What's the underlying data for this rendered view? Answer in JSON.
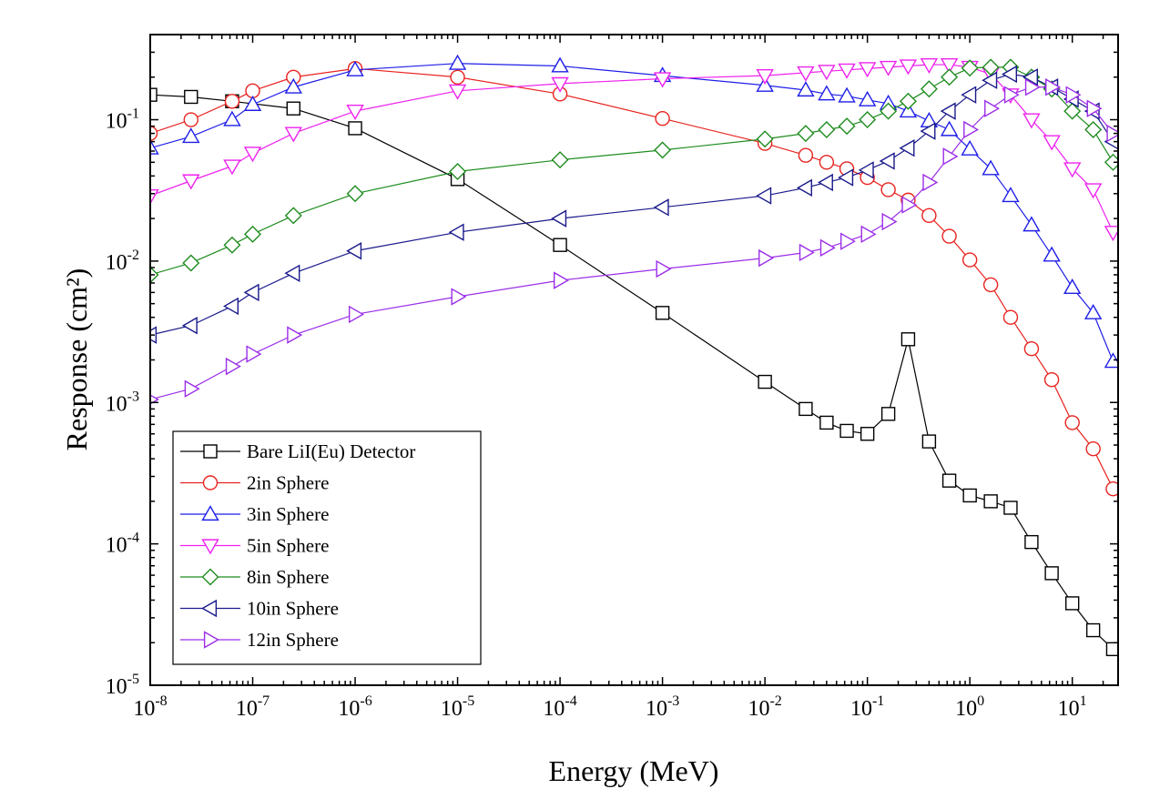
{
  "chart_data": {
    "type": "line",
    "title": "",
    "xlabel": "Energy (MeV)",
    "ylabel": "Response (cm²)",
    "x_scale": "log",
    "y_scale": "log",
    "xlim": [
      1e-08,
      28
    ],
    "ylim": [
      1e-05,
      0.4
    ],
    "grid": false,
    "legend_position": "lower-left",
    "x_ticks": [
      {
        "value": 1e-08,
        "base": "10",
        "exp": "-8"
      },
      {
        "value": 1e-07,
        "base": "10",
        "exp": "-7"
      },
      {
        "value": 1e-06,
        "base": "10",
        "exp": "-6"
      },
      {
        "value": 1e-05,
        "base": "10",
        "exp": "-5"
      },
      {
        "value": 0.0001,
        "base": "10",
        "exp": "-4"
      },
      {
        "value": 0.001,
        "base": "10",
        "exp": "-3"
      },
      {
        "value": 0.01,
        "base": "10",
        "exp": "-2"
      },
      {
        "value": 0.1,
        "base": "10",
        "exp": "-1"
      },
      {
        "value": 1,
        "base": "10",
        "exp": "0"
      },
      {
        "value": 10,
        "base": "10",
        "exp": "1"
      }
    ],
    "y_ticks": [
      {
        "value": 1e-05,
        "base": "10",
        "exp": "-5"
      },
      {
        "value": 0.0001,
        "base": "10",
        "exp": "-4"
      },
      {
        "value": 0.001,
        "base": "10",
        "exp": "-3"
      },
      {
        "value": 0.01,
        "base": "10",
        "exp": "-2"
      },
      {
        "value": 0.1,
        "base": "10",
        "exp": "-1"
      }
    ],
    "series": [
      {
        "name": "Bare LiI(Eu) Detector",
        "color": "#000000",
        "marker": "square",
        "x": [
          1e-08,
          2.5e-08,
          6.3e-08,
          2.5e-07,
          1e-06,
          1e-05,
          0.0001,
          0.001,
          0.01,
          0.025,
          0.04,
          0.063,
          0.1,
          0.16,
          0.25,
          0.4,
          0.63,
          1,
          1.6,
          2.5,
          4,
          6.3,
          10,
          16,
          25
        ],
        "y": [
          0.15,
          0.145,
          0.135,
          0.12,
          0.087,
          0.038,
          0.013,
          0.0043,
          0.0014,
          0.0009,
          0.00072,
          0.00063,
          0.0006,
          0.00083,
          0.0028,
          0.00053,
          0.00028,
          0.00022,
          0.0002,
          0.00018,
          0.000103,
          6.2e-05,
          3.8e-05,
          2.45e-05,
          1.8e-05
        ]
      },
      {
        "name": "2in Sphere",
        "color": "#e8231f",
        "marker": "circle",
        "x": [
          1e-08,
          2.5e-08,
          6.3e-08,
          1e-07,
          2.5e-07,
          1e-06,
          1e-05,
          0.0001,
          0.001,
          0.01,
          0.025,
          0.04,
          0.063,
          0.1,
          0.16,
          0.25,
          0.4,
          0.63,
          1,
          1.6,
          2.5,
          4,
          6.3,
          10,
          16,
          25
        ],
        "y": [
          0.08,
          0.1,
          0.135,
          0.16,
          0.2,
          0.23,
          0.2,
          0.152,
          0.102,
          0.068,
          0.056,
          0.05,
          0.045,
          0.039,
          0.032,
          0.027,
          0.021,
          0.015,
          0.0102,
          0.0068,
          0.004,
          0.0024,
          0.00145,
          0.00072,
          0.00047,
          0.000245
        ]
      },
      {
        "name": "3in Sphere",
        "color": "#1f1fe8",
        "marker": "triangle-up",
        "x": [
          1e-08,
          2.5e-08,
          6.3e-08,
          1e-07,
          2.5e-07,
          1e-06,
          1e-05,
          0.0001,
          0.001,
          0.01,
          0.025,
          0.04,
          0.063,
          0.1,
          0.16,
          0.25,
          0.4,
          0.63,
          1,
          1.6,
          2.5,
          4,
          6.3,
          10,
          16,
          25
        ],
        "y": [
          0.063,
          0.076,
          0.1,
          0.128,
          0.17,
          0.225,
          0.25,
          0.24,
          0.205,
          0.175,
          0.162,
          0.152,
          0.147,
          0.138,
          0.13,
          0.115,
          0.098,
          0.085,
          0.062,
          0.045,
          0.029,
          0.018,
          0.011,
          0.0065,
          0.0043,
          0.00195
        ]
      },
      {
        "name": "5in Sphere",
        "color": "#ee22ee",
        "marker": "triangle-down",
        "x": [
          1e-08,
          2.5e-08,
          6.3e-08,
          1e-07,
          2.5e-07,
          1e-06,
          1e-05,
          0.0001,
          0.001,
          0.01,
          0.025,
          0.04,
          0.063,
          0.1,
          0.16,
          0.25,
          0.4,
          0.63,
          1,
          1.6,
          2.5,
          4,
          6.3,
          10,
          16,
          25
        ],
        "y": [
          0.029,
          0.037,
          0.047,
          0.058,
          0.08,
          0.115,
          0.16,
          0.18,
          0.195,
          0.205,
          0.215,
          0.22,
          0.225,
          0.23,
          0.235,
          0.24,
          0.245,
          0.245,
          0.235,
          0.21,
          0.15,
          0.1,
          0.07,
          0.045,
          0.032,
          0.016
        ]
      },
      {
        "name": "8in Sphere",
        "color": "#1f8c1f",
        "marker": "diamond",
        "x": [
          1e-08,
          2.5e-08,
          6.3e-08,
          1e-07,
          2.5e-07,
          1e-06,
          1e-05,
          0.0001,
          0.001,
          0.01,
          0.025,
          0.04,
          0.063,
          0.1,
          0.16,
          0.25,
          0.4,
          0.63,
          1,
          1.6,
          2.5,
          4,
          6.3,
          10,
          16,
          25
        ],
        "y": [
          0.008,
          0.0097,
          0.013,
          0.0155,
          0.021,
          0.03,
          0.043,
          0.052,
          0.061,
          0.073,
          0.08,
          0.085,
          0.09,
          0.1,
          0.115,
          0.135,
          0.165,
          0.2,
          0.232,
          0.235,
          0.235,
          0.2,
          0.165,
          0.115,
          0.085,
          0.05
        ]
      },
      {
        "name": "10in Sphere",
        "color": "#1a1a8c",
        "marker": "triangle-left",
        "x": [
          1e-08,
          2.5e-08,
          6.3e-08,
          1e-07,
          2.5e-07,
          1e-06,
          1e-05,
          0.0001,
          0.001,
          0.01,
          0.025,
          0.04,
          0.063,
          0.1,
          0.16,
          0.25,
          0.4,
          0.63,
          1,
          1.6,
          2.5,
          4,
          6.3,
          10,
          16,
          25
        ],
        "y": [
          0.003,
          0.0035,
          0.0048,
          0.006,
          0.0082,
          0.0118,
          0.016,
          0.02,
          0.024,
          0.029,
          0.033,
          0.036,
          0.039,
          0.044,
          0.051,
          0.063,
          0.083,
          0.115,
          0.15,
          0.19,
          0.21,
          0.2,
          0.17,
          0.14,
          0.115,
          0.07
        ]
      },
      {
        "name": "12in Sphere",
        "color": "#9b2ee8",
        "marker": "triangle-right",
        "x": [
          1e-08,
          2.5e-08,
          6.3e-08,
          1e-07,
          2.5e-07,
          1e-06,
          1e-05,
          0.0001,
          0.001,
          0.01,
          0.025,
          0.04,
          0.063,
          0.1,
          0.16,
          0.25,
          0.4,
          0.63,
          1,
          1.6,
          2.5,
          4,
          6.3,
          10,
          16,
          25
        ],
        "y": [
          0.00105,
          0.00125,
          0.0018,
          0.0022,
          0.003,
          0.0042,
          0.0056,
          0.0073,
          0.0088,
          0.0105,
          0.0115,
          0.0124,
          0.0138,
          0.0155,
          0.019,
          0.025,
          0.036,
          0.055,
          0.085,
          0.12,
          0.15,
          0.17,
          0.17,
          0.15,
          0.12,
          0.08
        ]
      }
    ]
  }
}
